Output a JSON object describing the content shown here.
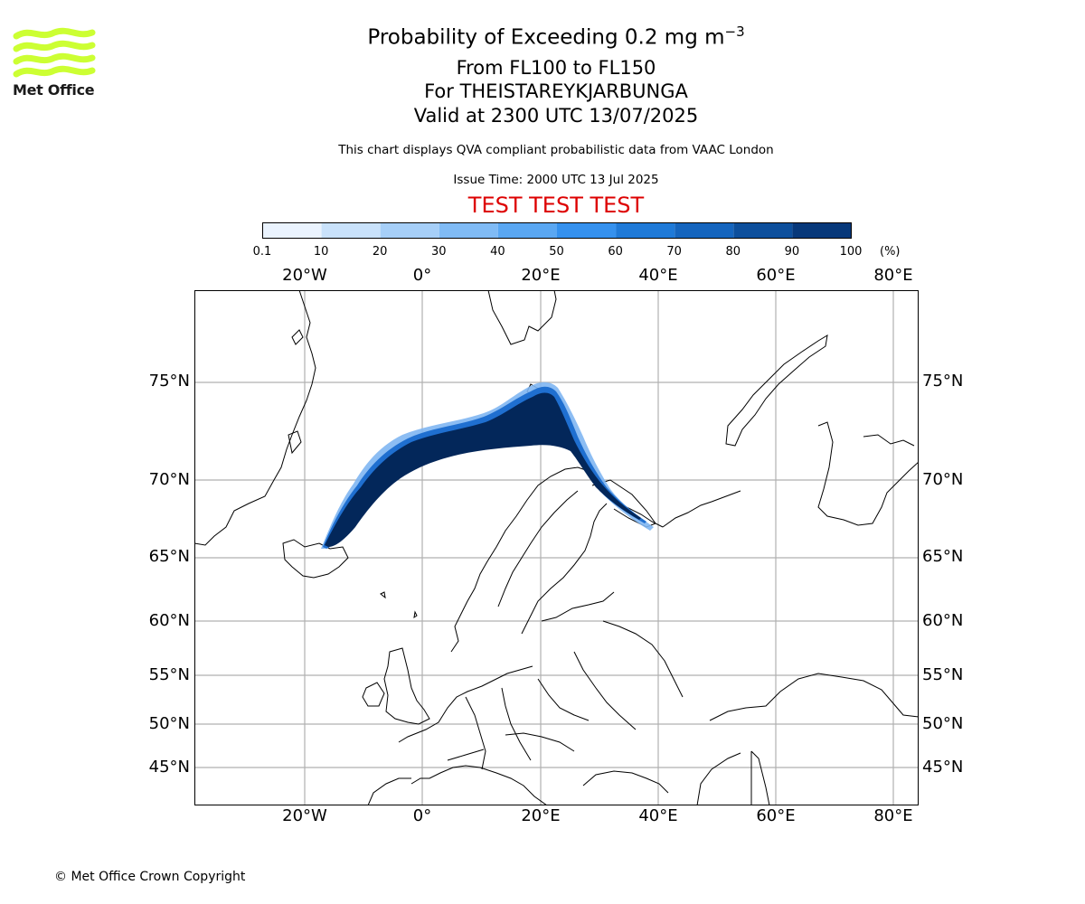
{
  "header": {
    "title_prefix": "Probability of Exceeding 0.2 mg m",
    "title_exponent": "−3",
    "levels": "From FL100 to FL150",
    "volcano": "For THEISTAREYKJARBUNGA",
    "valid": "Valid at 2300 UTC 13/07/2025",
    "note": "This chart displays QVA compliant probabilistic data from VAAC London",
    "issue_time": "Issue Time: 2000 UTC 13 Jul 2025",
    "test_banner": "TEST TEST TEST"
  },
  "logo": {
    "text": "Met Office",
    "color": "#ccff33"
  },
  "colorbar": {
    "ticks": [
      "0.1",
      "10",
      "20",
      "30",
      "40",
      "50",
      "60",
      "70",
      "80",
      "90",
      "100"
    ],
    "units": "(%)",
    "colors": [
      "#eaf3fe",
      "#c9e2fb",
      "#a6cff8",
      "#80bbf5",
      "#5aa7f2",
      "#3591ee",
      "#1f7ad8",
      "#1565be",
      "#0d4f9c",
      "#07387a",
      "#03275a"
    ]
  },
  "map": {
    "lon_labels": [
      "20°W",
      "0°",
      "20°E",
      "40°E",
      "60°E",
      "80°E"
    ],
    "lat_labels": [
      "75°N",
      "70°N",
      "65°N",
      "60°N",
      "55°N",
      "50°N",
      "45°N"
    ],
    "grid_color": "#b0b0b0",
    "plume_color": "#03275a"
  },
  "footer": {
    "copyright": "© Met Office Crown Copyright"
  }
}
